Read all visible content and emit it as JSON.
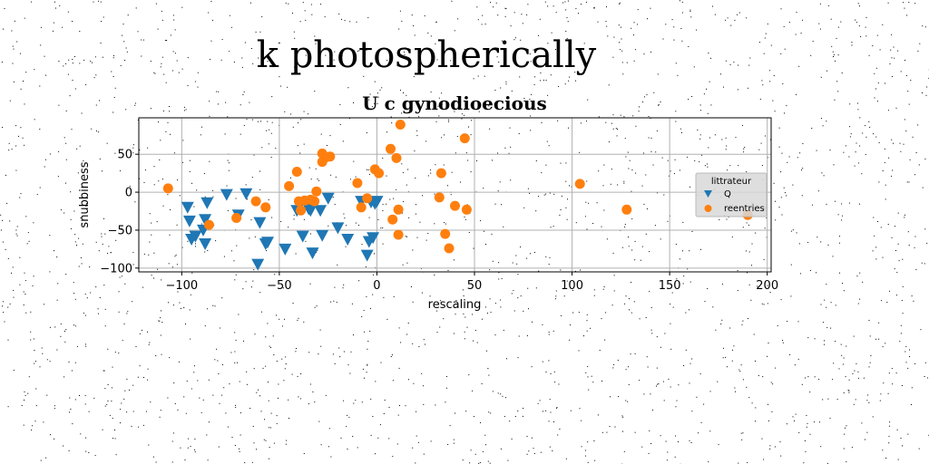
{
  "chart_data": {
    "type": "scatter",
    "suptitle": "k photospherically",
    "title": "U c gynodioecious",
    "xlabel": "rescaling",
    "ylabel": "snubbiness",
    "xlim": [
      -122,
      202
    ],
    "ylim": [
      -105,
      98
    ],
    "xticks": [
      -100,
      -50,
      0,
      50,
      100,
      150,
      200
    ],
    "yticks": [
      50,
      0,
      -50,
      -100
    ],
    "grid": true,
    "legend": {
      "title": "littrateur",
      "placement": "right"
    },
    "series": [
      {
        "name": "Q",
        "marker": "triangle-down",
        "color": "#1f77b4",
        "x": [
          -97,
          -96,
          -95,
          -93,
          -89,
          -88,
          -88,
          -87,
          -77,
          -71,
          -67,
          -61,
          -60,
          -57,
          -56,
          -47,
          -41,
          -38,
          -35,
          -34,
          -33,
          -29,
          -28,
          -25,
          -20,
          -15,
          -8,
          -5,
          -4,
          -3,
          -2,
          -1,
          0
        ],
        "y": [
          -20,
          -38,
          -62,
          -58,
          -50,
          -68,
          -36,
          -14,
          -3,
          -30,
          -2,
          -95,
          -40,
          -68,
          -66,
          -75,
          -24,
          -58,
          -22,
          -24,
          -80,
          -24,
          -57,
          -8,
          -47,
          -62,
          -12,
          -83,
          -65,
          -13,
          -60,
          -15,
          -12
        ]
      },
      {
        "name": "reentries",
        "marker": "circle",
        "color": "#ff7f0e",
        "x": [
          -107,
          -86,
          -72,
          -62,
          -57,
          -45,
          -41,
          -40,
          -39,
          -37,
          -34,
          -32,
          -31,
          -28,
          -28,
          -26,
          -24,
          -10,
          -8,
          -5,
          -1,
          1,
          7,
          8,
          10,
          11,
          11,
          12,
          32,
          33,
          35,
          37,
          40,
          45,
          46,
          104,
          128,
          190
        ],
        "y": [
          5,
          -43,
          -34,
          -12,
          -20,
          8,
          27,
          -12,
          -24,
          -11,
          -10,
          -12,
          1,
          40,
          51,
          46,
          47,
          12,
          -20,
          -8,
          30,
          25,
          57,
          -36,
          45,
          -23,
          -56,
          89,
          -7,
          25,
          -55,
          -74,
          -18,
          71,
          -23,
          11,
          -23,
          -30
        ]
      }
    ]
  }
}
